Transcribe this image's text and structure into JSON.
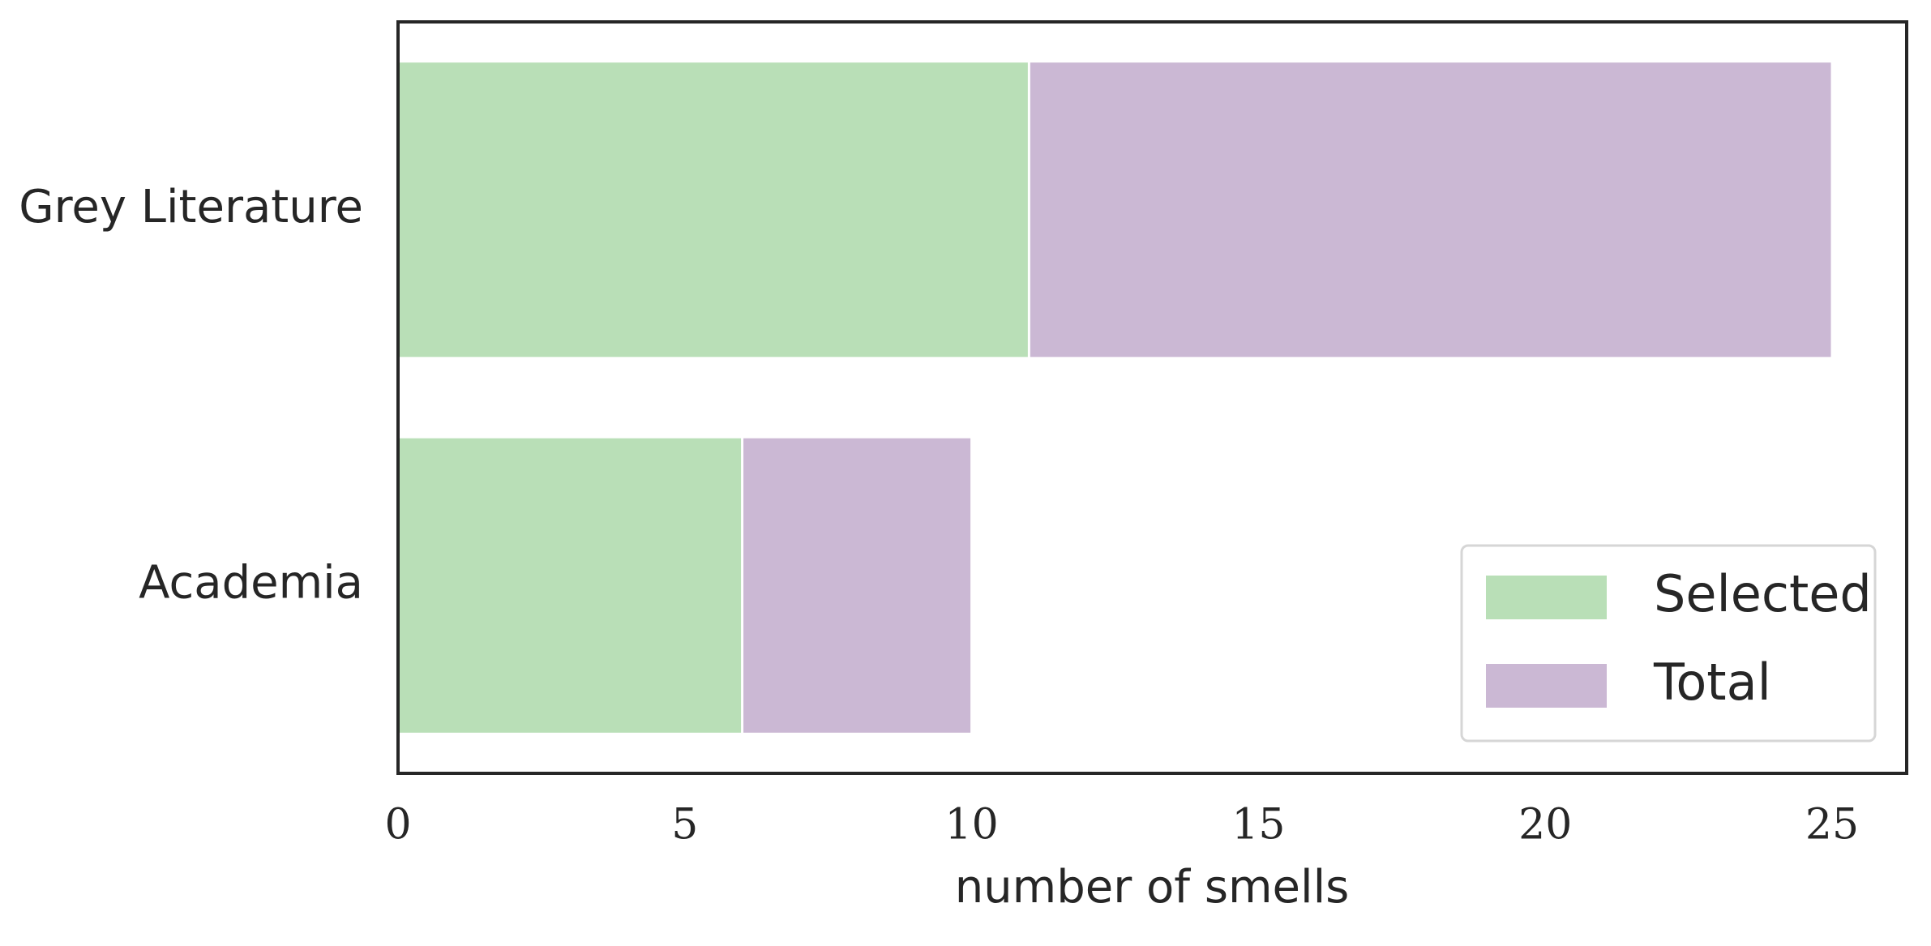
{
  "chart_data": {
    "type": "hbar-overlap",
    "xlabel": "number of smells",
    "categories": [
      "Grey Literature",
      "Academia"
    ],
    "series": [
      {
        "name": "Total",
        "color": "#cbb8d4",
        "values": [
          25,
          10
        ]
      },
      {
        "name": "Selected",
        "color": "#b9dfb7",
        "values": [
          11,
          6
        ]
      }
    ],
    "xlim": [
      0,
      26.3
    ],
    "xticks": [
      0,
      5,
      10,
      15,
      20,
      25
    ],
    "legend": "lower right"
  }
}
